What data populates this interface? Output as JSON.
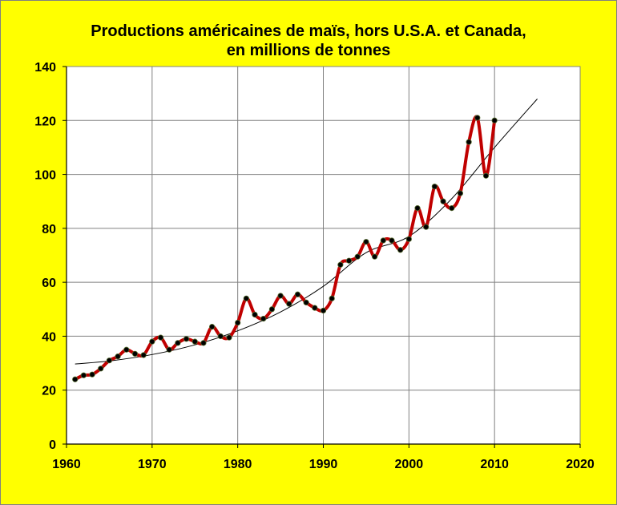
{
  "chart_data": {
    "type": "line",
    "title": "Productions américaines de maïs, hors U.S.A. et Canada,",
    "subtitle": "en millions de tonnes",
    "xlim": [
      1960,
      2020
    ],
    "ylim": [
      0,
      140
    ],
    "x_ticks": [
      "1960",
      "1970",
      "1980",
      "1990",
      "2000",
      "2010",
      "2020"
    ],
    "y_ticks": [
      "0",
      "20",
      "40",
      "60",
      "80",
      "100",
      "120",
      "140"
    ],
    "grid": true,
    "background_color": "#ffff00",
    "plot_background_color": "#ffffff",
    "series": [
      {
        "color": "#c00000",
        "marker_color": "#000000",
        "style": "smooth line with markers",
        "x": [
          1961,
          1962,
          1963,
          1964,
          1965,
          1966,
          1967,
          1968,
          1969,
          1970,
          1971,
          1972,
          1973,
          1974,
          1975,
          1976,
          1977,
          1978,
          1979,
          1980,
          1981,
          1982,
          1983,
          1984,
          1985,
          1986,
          1987,
          1988,
          1989,
          1990,
          1991,
          1992,
          1993,
          1994,
          1995,
          1996,
          1997,
          1998,
          1999,
          2000,
          2001,
          2002,
          2003,
          2004,
          2005,
          2006,
          2007,
          2008,
          2009,
          2010
        ],
        "values": [
          24,
          25.5,
          25.8,
          28,
          31,
          32.5,
          35,
          33.5,
          33,
          38,
          39.5,
          35,
          37.5,
          39,
          38,
          37.5,
          43.5,
          40,
          39.5,
          45,
          54,
          48,
          46.5,
          50,
          55,
          52,
          55.5,
          52.5,
          50.5,
          49.5,
          54,
          66.5,
          68,
          69.5,
          75,
          69.5,
          75.5,
          75.5,
          72,
          76,
          87.5,
          80.5,
          95.5,
          90,
          87.5,
          93,
          112,
          121,
          99.5,
          120
        ]
      },
      {
        "color": "#000000",
        "style": "thin trend line",
        "x": [
          1961,
          1965,
          1970,
          1975,
          1980,
          1985,
          1990,
          1995,
          2000,
          2005,
          2010,
          2015
        ],
        "values": [
          29.7,
          30.8,
          33.2,
          36.8,
          42,
          49,
          58.5,
          71,
          77,
          91,
          110,
          128
        ]
      }
    ]
  }
}
